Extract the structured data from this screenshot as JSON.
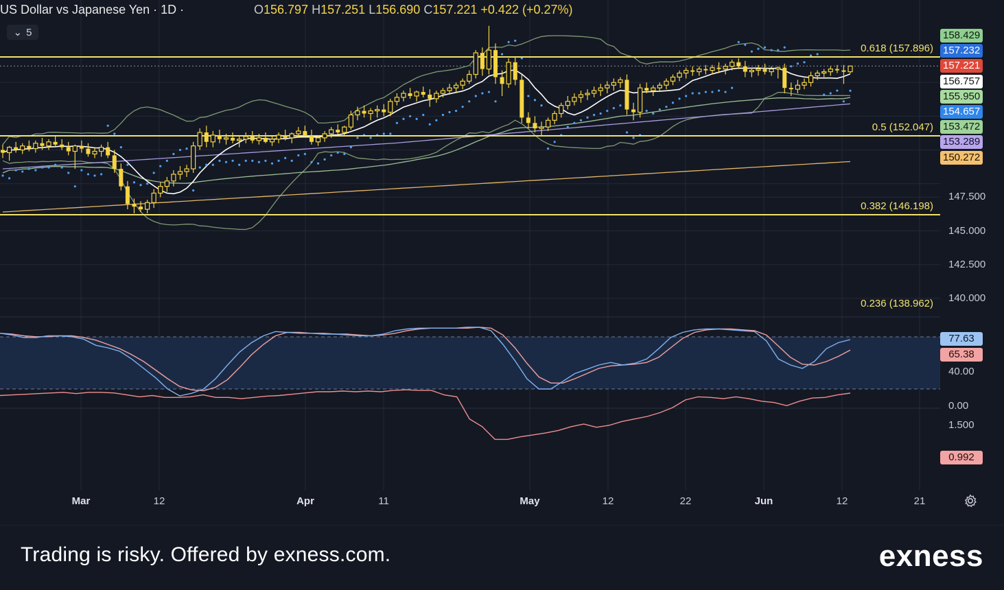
{
  "header": {
    "title": "US Dollar vs Japanese Yen · 1D ·",
    "ohlc": [
      {
        "k": "O",
        "v": "156.797"
      },
      {
        "k": "H",
        "v": "157.251"
      },
      {
        "k": "L",
        "v": "156.690"
      },
      {
        "k": "C",
        "v": "157.221"
      }
    ],
    "change": "+0.422 (+0.27%)",
    "indicator_count": "5"
  },
  "colors": {
    "background": "#141823",
    "candle": "#f6d542",
    "fib_line": "#f2e36b",
    "parabolic_sar": "#4ea1f3",
    "ma_white": "#ffffff",
    "ma_green": "#9bbf95",
    "ma_purple": "#a89ce0",
    "ma_orange": "#e6b566",
    "bollinger": "#7f9a72",
    "stoch_k": "#7fb2f0",
    "stoch_d": "#f0a1a1",
    "lower_line": "#f08f8f"
  },
  "price_axis": {
    "ticks": [
      "147.500",
      "145.000",
      "142.500",
      "140.000"
    ],
    "badges": [
      {
        "value": "158.429",
        "bg": "#8fcf8f",
        "fg": "#0d1a0d"
      },
      {
        "value": "157.232",
        "bg": "#2a6fdb",
        "fg": "#ffffff"
      },
      {
        "value": "157.221",
        "bg": "#e0483a",
        "fg": "#ffffff"
      },
      {
        "value": "156.757",
        "bg": "#ffffff",
        "fg": "#111111"
      },
      {
        "value": "155.950",
        "bg": "#a9dba1",
        "fg": "#0d1a0d"
      },
      {
        "value": "154.657",
        "bg": "#2f86eb",
        "fg": "#ffffff"
      },
      {
        "value": "153.472",
        "bg": "#9fd39a",
        "fg": "#0d1a0d"
      },
      {
        "value": "153.289",
        "bg": "#b7a6ec",
        "fg": "#15112a"
      },
      {
        "value": "150.272",
        "bg": "#f4c170",
        "fg": "#1d1405"
      }
    ]
  },
  "fib_levels": [
    {
      "label": "0.618 (157.896)",
      "value": 157.896
    },
    {
      "label": "0.5 (152.047)",
      "value": 152.047
    },
    {
      "label": "0.382 (146.198)",
      "value": 146.198
    },
    {
      "label": "0.236 (138.962)",
      "value": 138.962
    }
  ],
  "oscillator": {
    "ticks": [
      "40.00",
      "0.00"
    ],
    "badges": [
      {
        "value": "77.63",
        "bg": "#9cc4f2",
        "fg": "#0d1524"
      },
      {
        "value": "65.38",
        "bg": "#f2a3a3",
        "fg": "#240d0d"
      }
    ]
  },
  "lower_panel": {
    "ticks": [
      "1.500"
    ],
    "badge": {
      "value": "0.992",
      "bg": "#f2a3a3",
      "fg": "#240d0d"
    }
  },
  "time_axis": [
    {
      "label": "Mar",
      "bold": true
    },
    {
      "label": "12",
      "bold": false
    },
    {
      "label": "Apr",
      "bold": true
    },
    {
      "label": "11",
      "bold": false
    },
    {
      "label": "May",
      "bold": true
    },
    {
      "label": "12",
      "bold": false
    },
    {
      "label": "22",
      "bold": false
    },
    {
      "label": "Jun",
      "bold": true
    },
    {
      "label": "12",
      "bold": false
    },
    {
      "label": "21",
      "bold": false
    }
  ],
  "footer": {
    "disclaimer": "Trading is risky. Offered by exness.com.",
    "logo": "exness"
  },
  "chart_data": {
    "type": "candlestick",
    "title": "US Dollar vs Japanese Yen · 1D ·",
    "ylim": [
      137.5,
      160.0
    ],
    "fib_levels": [
      157.896,
      152.047,
      146.198,
      138.962
    ],
    "candles": [
      [
        151.0,
        151.4,
        150.4,
        150.8
      ],
      [
        150.8,
        151.3,
        150.2,
        151.2
      ],
      [
        151.2,
        151.6,
        150.8,
        151.0
      ],
      [
        151.0,
        151.5,
        150.7,
        151.3
      ],
      [
        151.3,
        151.7,
        150.9,
        151.1
      ],
      [
        151.1,
        151.7,
        150.8,
        151.5
      ],
      [
        151.5,
        151.9,
        151.0,
        151.3
      ],
      [
        151.3,
        151.8,
        151.0,
        151.6
      ],
      [
        151.6,
        152.0,
        151.2,
        151.4
      ],
      [
        151.4,
        151.8,
        151.0,
        151.2
      ],
      [
        151.2,
        151.6,
        150.6,
        150.9
      ],
      [
        150.9,
        151.4,
        149.6,
        151.3
      ],
      [
        151.3,
        151.7,
        150.8,
        151.1
      ],
      [
        151.1,
        151.5,
        150.5,
        150.7
      ],
      [
        150.7,
        151.2,
        150.4,
        150.9
      ],
      [
        150.9,
        151.4,
        150.5,
        151.2
      ],
      [
        151.2,
        151.6,
        150.4,
        150.6
      ],
      [
        150.6,
        151.0,
        149.3,
        149.6
      ],
      [
        149.6,
        150.0,
        148.0,
        148.3
      ],
      [
        148.3,
        148.7,
        146.6,
        147.0
      ],
      [
        147.0,
        147.4,
        146.3,
        146.8
      ],
      [
        146.8,
        147.2,
        146.4,
        146.6
      ],
      [
        146.6,
        147.3,
        146.3,
        147.1
      ],
      [
        147.1,
        148.1,
        146.7,
        147.8
      ],
      [
        147.8,
        148.6,
        147.5,
        148.3
      ],
      [
        148.3,
        149.0,
        147.9,
        148.7
      ],
      [
        148.7,
        149.5,
        148.3,
        149.2
      ],
      [
        149.2,
        149.8,
        148.8,
        149.4
      ],
      [
        149.4,
        149.9,
        149.0,
        149.6
      ],
      [
        149.6,
        151.6,
        149.3,
        151.3
      ],
      [
        151.3,
        152.6,
        151.0,
        152.3
      ],
      [
        152.3,
        152.8,
        151.2,
        151.6
      ],
      [
        151.6,
        152.4,
        151.2,
        152.1
      ],
      [
        152.1,
        152.5,
        151.5,
        151.8
      ],
      [
        151.8,
        152.2,
        151.4,
        151.9
      ],
      [
        151.9,
        152.3,
        151.5,
        151.7
      ],
      [
        151.7,
        152.1,
        151.2,
        151.8
      ],
      [
        151.8,
        152.3,
        151.5,
        152.0
      ],
      [
        152.0,
        152.4,
        151.5,
        151.7
      ],
      [
        151.7,
        152.2,
        151.4,
        151.9
      ],
      [
        151.9,
        152.3,
        151.5,
        151.6
      ],
      [
        151.6,
        152.0,
        151.3,
        151.8
      ],
      [
        151.8,
        152.3,
        151.5,
        152.1
      ],
      [
        152.1,
        152.5,
        151.7,
        151.9
      ],
      [
        151.9,
        152.3,
        151.5,
        152.2
      ],
      [
        152.2,
        152.7,
        151.9,
        152.4
      ],
      [
        152.4,
        152.8,
        152.0,
        152.1
      ],
      [
        152.1,
        152.5,
        151.4,
        151.6
      ],
      [
        151.6,
        152.1,
        151.3,
        151.9
      ],
      [
        151.9,
        152.4,
        151.6,
        152.2
      ],
      [
        152.2,
        152.7,
        151.9,
        152.5
      ],
      [
        152.5,
        152.9,
        152.1,
        152.3
      ],
      [
        152.3,
        152.8,
        152.0,
        152.7
      ],
      [
        152.7,
        153.9,
        152.5,
        153.6
      ],
      [
        153.6,
        154.2,
        153.2,
        153.9
      ],
      [
        153.9,
        154.3,
        153.4,
        153.7
      ],
      [
        153.7,
        154.1,
        153.2,
        153.9
      ],
      [
        153.9,
        154.3,
        153.4,
        154.0
      ],
      [
        154.0,
        154.4,
        153.5,
        153.8
      ],
      [
        153.8,
        154.8,
        153.5,
        154.6
      ],
      [
        154.6,
        155.2,
        154.3,
        154.9
      ],
      [
        154.9,
        155.4,
        154.6,
        155.2
      ],
      [
        155.2,
        155.6,
        154.8,
        155.0
      ],
      [
        155.0,
        155.4,
        154.6,
        155.3
      ],
      [
        155.3,
        155.7,
        154.9,
        155.1
      ],
      [
        155.1,
        155.5,
        154.2,
        154.8
      ],
      [
        154.8,
        155.4,
        154.5,
        155.2
      ],
      [
        155.2,
        155.6,
        154.9,
        155.4
      ],
      [
        155.4,
        155.9,
        155.1,
        155.6
      ],
      [
        155.6,
        156.0,
        155.2,
        155.8
      ],
      [
        155.8,
        156.3,
        155.5,
        156.1
      ],
      [
        156.1,
        156.9,
        155.9,
        156.6
      ],
      [
        156.6,
        158.4,
        156.3,
        158.2
      ],
      [
        158.2,
        158.6,
        156.5,
        157.0
      ],
      [
        157.0,
        160.2,
        156.6,
        158.4
      ],
      [
        158.4,
        158.9,
        155.9,
        156.4
      ],
      [
        156.4,
        156.9,
        155.0,
        155.9
      ],
      [
        155.9,
        157.8,
        155.6,
        157.5
      ],
      [
        157.5,
        157.9,
        155.8,
        156.2
      ],
      [
        156.2,
        156.6,
        153.0,
        153.4
      ],
      [
        153.4,
        153.8,
        152.6,
        153.0
      ],
      [
        153.0,
        153.5,
        152.3,
        152.6
      ],
      [
        152.6,
        153.1,
        152.0,
        152.7
      ],
      [
        152.7,
        153.4,
        152.4,
        153.2
      ],
      [
        153.2,
        153.9,
        152.9,
        153.7
      ],
      [
        153.7,
        154.5,
        153.4,
        154.3
      ],
      [
        154.3,
        155.0,
        154.0,
        154.6
      ],
      [
        154.6,
        155.2,
        154.3,
        154.9
      ],
      [
        154.9,
        155.4,
        154.5,
        155.1
      ],
      [
        155.1,
        155.5,
        154.7,
        155.2
      ],
      [
        155.2,
        155.7,
        154.9,
        155.4
      ],
      [
        155.4,
        155.9,
        155.0,
        155.6
      ],
      [
        155.6,
        156.1,
        155.2,
        155.8
      ],
      [
        155.8,
        156.3,
        155.4,
        156.0
      ],
      [
        156.0,
        156.4,
        155.6,
        156.2
      ],
      [
        156.2,
        156.6,
        153.6,
        154.0
      ],
      [
        154.0,
        154.5,
        153.2,
        153.8
      ],
      [
        153.8,
        155.9,
        153.4,
        155.6
      ],
      [
        155.6,
        156.0,
        155.2,
        155.4
      ],
      [
        155.4,
        155.8,
        155.0,
        155.6
      ],
      [
        155.6,
        156.0,
        155.3,
        155.8
      ],
      [
        155.8,
        156.3,
        155.5,
        156.1
      ],
      [
        156.1,
        156.6,
        155.8,
        156.4
      ],
      [
        156.4,
        156.9,
        156.1,
        156.7
      ],
      [
        156.7,
        157.1,
        156.3,
        156.9
      ],
      [
        156.9,
        157.2,
        156.5,
        156.8
      ],
      [
        156.8,
        157.2,
        156.5,
        157.0
      ],
      [
        157.0,
        157.3,
        156.6,
        156.9
      ],
      [
        156.9,
        157.3,
        156.6,
        157.1
      ],
      [
        157.1,
        157.5,
        156.7,
        157.0
      ],
      [
        157.0,
        157.4,
        156.6,
        157.2
      ],
      [
        157.2,
        157.7,
        156.9,
        157.5
      ],
      [
        157.5,
        157.8,
        157.0,
        157.2
      ],
      [
        157.2,
        157.6,
        156.4,
        156.8
      ],
      [
        156.8,
        157.1,
        156.4,
        156.9
      ],
      [
        156.9,
        157.3,
        156.5,
        157.0
      ],
      [
        157.0,
        157.4,
        156.6,
        156.8
      ],
      [
        156.8,
        157.2,
        156.5,
        157.0
      ],
      [
        157.0,
        157.2,
        156.3,
        157.1
      ],
      [
        157.1,
        157.4,
        155.2,
        155.6
      ],
      [
        155.6,
        156.0,
        155.0,
        155.5
      ],
      [
        155.5,
        156.2,
        155.2,
        155.8
      ],
      [
        155.8,
        156.3,
        155.5,
        156.0
      ],
      [
        156.0,
        156.8,
        155.7,
        156.5
      ],
      [
        156.5,
        156.9,
        156.2,
        156.7
      ],
      [
        156.7,
        157.0,
        156.4,
        156.8
      ],
      [
        156.8,
        157.2,
        156.5,
        157.0
      ],
      [
        157.0,
        157.3,
        156.7,
        156.9
      ],
      [
        156.9,
        157.3,
        155.9,
        156.797
      ],
      [
        156.797,
        157.251,
        156.69,
        157.221
      ]
    ]
  }
}
